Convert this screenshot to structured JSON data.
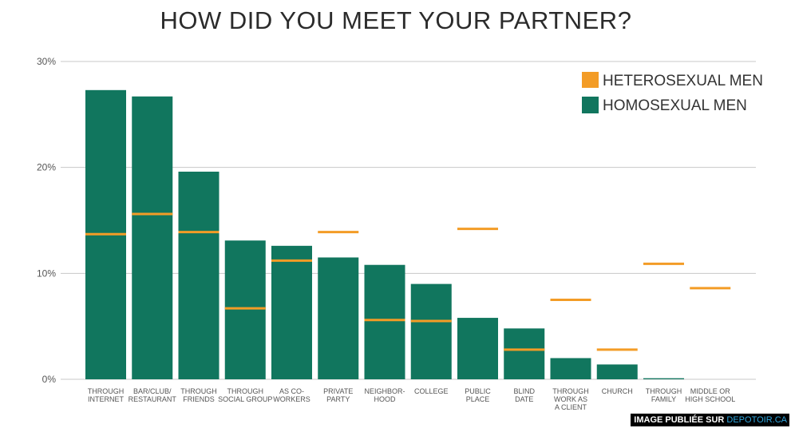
{
  "chart_data": {
    "type": "bar",
    "title": "HOW DID YOU MEET YOUR PARTNER?",
    "ylim": [
      0,
      30
    ],
    "yticks": [
      "0%",
      "10%",
      "20%",
      "30%"
    ],
    "grid": true,
    "legend_position": "top-right",
    "categories": [
      [
        "THROUGH",
        "INTERNET"
      ],
      [
        "BAR/CLUB/",
        "RESTAURANT"
      ],
      [
        "THROUGH",
        "FRIENDS"
      ],
      [
        "THROUGH",
        "SOCIAL GROUP"
      ],
      [
        "AS CO-",
        "WORKERS"
      ],
      [
        "PRIVATE",
        "PARTY"
      ],
      [
        "NEIGHBOR-",
        "HOOD"
      ],
      [
        "COLLEGE"
      ],
      [
        "PUBLIC",
        "PLACE"
      ],
      [
        "BLIND",
        "DATE"
      ],
      [
        "THROUGH",
        "WORK AS",
        "A CLIENT"
      ],
      [
        "CHURCH"
      ],
      [
        "THROUGH",
        "FAMILY"
      ],
      [
        "MIDDLE OR",
        "HIGH SCHOOL"
      ]
    ],
    "series": [
      {
        "name": "HETEROSEXUAL MEN",
        "color": "#f39c26",
        "mark": "line",
        "values": [
          13.7,
          15.6,
          13.9,
          6.7,
          11.2,
          13.9,
          5.6,
          5.5,
          14.2,
          2.8,
          7.5,
          2.8,
          10.9,
          8.6
        ]
      },
      {
        "name": "HOMOSEXUAL MEN",
        "color": "#11765e",
        "mark": "bar",
        "values": [
          27.3,
          26.7,
          19.6,
          13.1,
          12.6,
          11.5,
          10.8,
          9.0,
          5.8,
          4.8,
          2.0,
          1.4,
          0.1,
          0
        ]
      }
    ]
  },
  "credit": {
    "prefix": "IMAGE PUBLIÉE SUR ",
    "site": "DEPOTOIR.CA"
  }
}
